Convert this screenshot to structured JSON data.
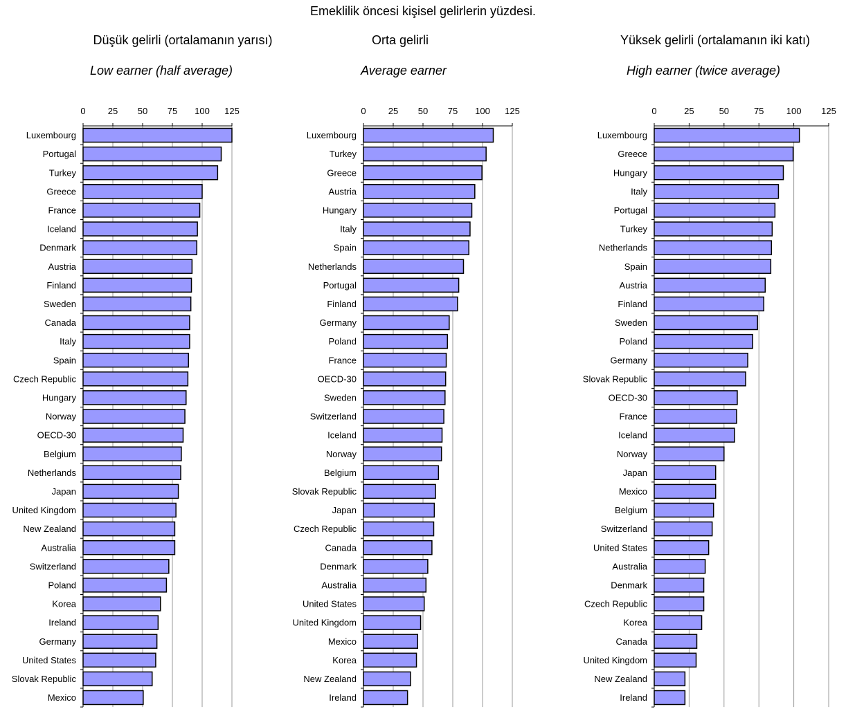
{
  "title": "Emeklilik öncesi kişisel gelirlerin yüzdesi.",
  "colors": {
    "bar_fill": "#9999ff",
    "bar_stroke": "#000000",
    "grid": "#999999"
  },
  "chart_data": [
    {
      "type": "bar",
      "orientation": "horizontal",
      "title_tr": "Düşük gelirli (ortalamanın yarısı)",
      "title_en": "Low earner (half average)",
      "xlim": [
        0,
        125
      ],
      "ticks": [
        "0",
        "25",
        "50",
        "75",
        "100",
        "125"
      ],
      "tick_values": [
        0,
        25,
        50,
        75,
        100,
        125
      ],
      "grid": true,
      "categories": [
        "Luxembourg",
        "Portugal",
        "Turkey",
        "Greece",
        "France",
        "Iceland",
        "Denmark",
        "Austria",
        "Finland",
        "Sweden",
        "Canada",
        "Italy",
        "Spain",
        "Czech Republic",
        "Hungary",
        "Norway",
        "OECD-30",
        "Belgium",
        "Netherlands",
        "Japan",
        "United Kingdom",
        "New Zealand",
        "Australia",
        "Switzerland",
        "Poland",
        "Korea",
        "Ireland",
        "Germany",
        "United States",
        "Slovak Republic",
        "Mexico"
      ],
      "values": [
        125,
        116,
        113,
        100,
        98,
        96,
        95.5,
        91.5,
        91,
        90.5,
        89.5,
        89.5,
        88.5,
        88,
        86.5,
        85.5,
        84,
        82.5,
        82,
        80,
        78,
        77,
        77,
        72,
        70,
        65,
        63,
        62,
        61,
        58,
        50.5
      ]
    },
    {
      "type": "bar",
      "orientation": "horizontal",
      "title_tr": "Orta gelirli",
      "title_en": "Average earner",
      "xlim": [
        0,
        125
      ],
      "ticks": [
        "0",
        "25",
        "50",
        "75",
        "100",
        "125"
      ],
      "tick_values": [
        0,
        25,
        50,
        75,
        100,
        125
      ],
      "grid": true,
      "categories": [
        "Luxembourg",
        "Turkey",
        "Greece",
        "Austria",
        "Hungary",
        "Italy",
        "Spain",
        "Netherlands",
        "Portugal",
        "Finland",
        "Germany",
        "Poland",
        "France",
        "OECD-30",
        "Sweden",
        "Switzerland",
        "Iceland",
        "Norway",
        "Belgium",
        "Slovak Republic",
        "Japan",
        "Czech Republic",
        "Canada",
        "Denmark",
        "Australia",
        "United States",
        "United Kingdom",
        "Mexico",
        "Korea",
        "New Zealand",
        "Ireland"
      ],
      "values": [
        109,
        103,
        99.5,
        93.5,
        91,
        89.5,
        88.5,
        84,
        80,
        79,
        72,
        70.5,
        69.5,
        69,
        68.5,
        67.5,
        66,
        65.5,
        63,
        60.5,
        59.5,
        59,
        57.5,
        54,
        52.5,
        51,
        48,
        45.5,
        44.5,
        39.5,
        37
      ]
    },
    {
      "type": "bar",
      "orientation": "horizontal",
      "title_tr": "Yüksek gelirli (ortalamanın iki katı)",
      "title_en": "High earner (twice average)",
      "xlim": [
        0,
        125
      ],
      "ticks": [
        "0",
        "25",
        "50",
        "75",
        "100",
        "125"
      ],
      "tick_values": [
        0,
        25,
        50,
        75,
        100,
        125
      ],
      "grid": true,
      "categories": [
        "Luxembourg",
        "Greece",
        "Hungary",
        "Italy",
        "Portugal",
        "Turkey",
        "Netherlands",
        "Spain",
        "Austria",
        "Finland",
        "Sweden",
        "Poland",
        "Germany",
        "Slovak Republic",
        "OECD-30",
        "France",
        "Iceland",
        "Norway",
        "Japan",
        "Mexico",
        "Belgium",
        "Switzerland",
        "United States",
        "Australia",
        "Denmark",
        "Czech Republic",
        "Korea",
        "Canada",
        "United Kingdom",
        "New Zealand",
        "Ireland"
      ],
      "values": [
        104,
        99.5,
        92.5,
        89,
        86.5,
        84.5,
        84,
        83.5,
        79.5,
        78.5,
        74,
        70.5,
        67,
        65.5,
        59.5,
        59,
        57.5,
        50,
        44,
        44,
        42.5,
        41.5,
        39,
        36.5,
        35.5,
        35.5,
        34,
        30.5,
        30,
        22,
        22
      ]
    }
  ]
}
